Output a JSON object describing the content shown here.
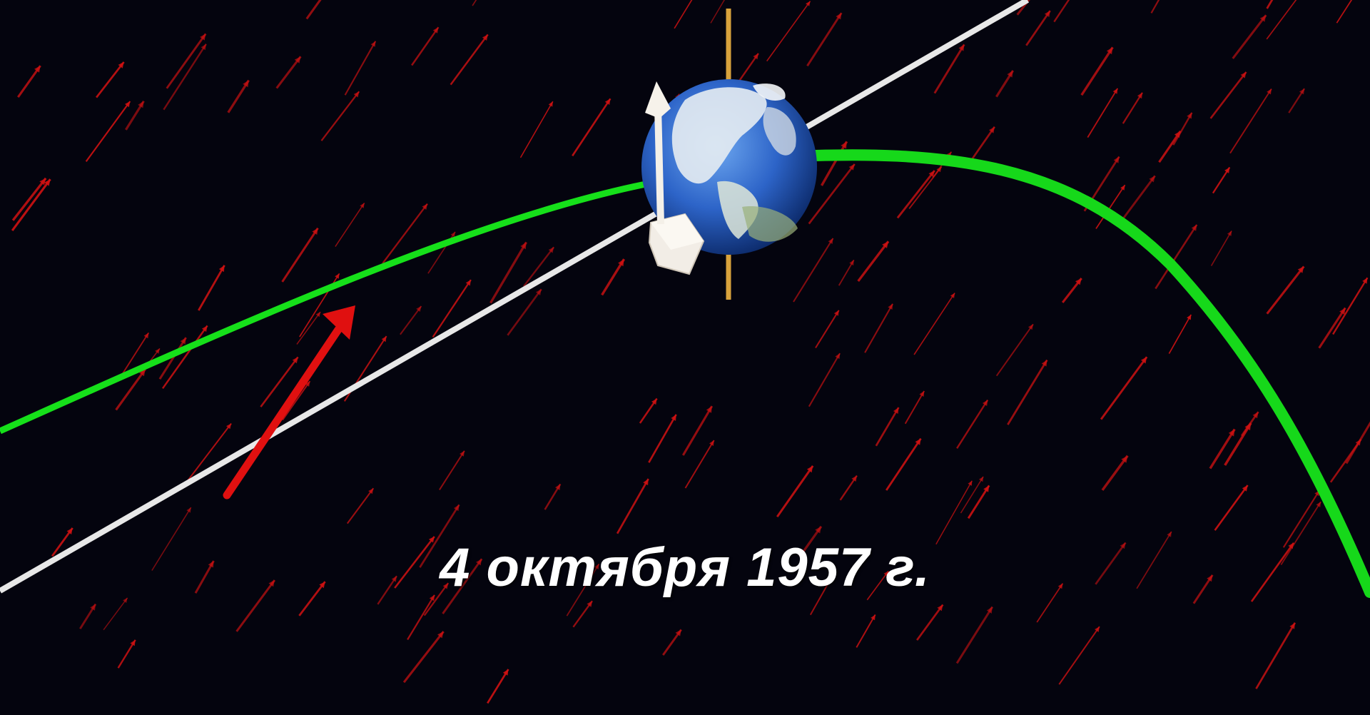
{
  "caption": "4 октября 1957 г.",
  "colors": {
    "background": "#04040e",
    "solar_wind_arrows": "#d11212",
    "magnetic_field_line": "#16e01a",
    "white_line": "#e8e8e8",
    "axis": "#d8a23c",
    "ocean": "#2d64c8",
    "land": "#e6ecf2"
  },
  "icons": [
    "earth-globe",
    "satellite",
    "solar-wind-arrows",
    "magnetic-field-line",
    "trajectory-line",
    "rotation-axis"
  ]
}
